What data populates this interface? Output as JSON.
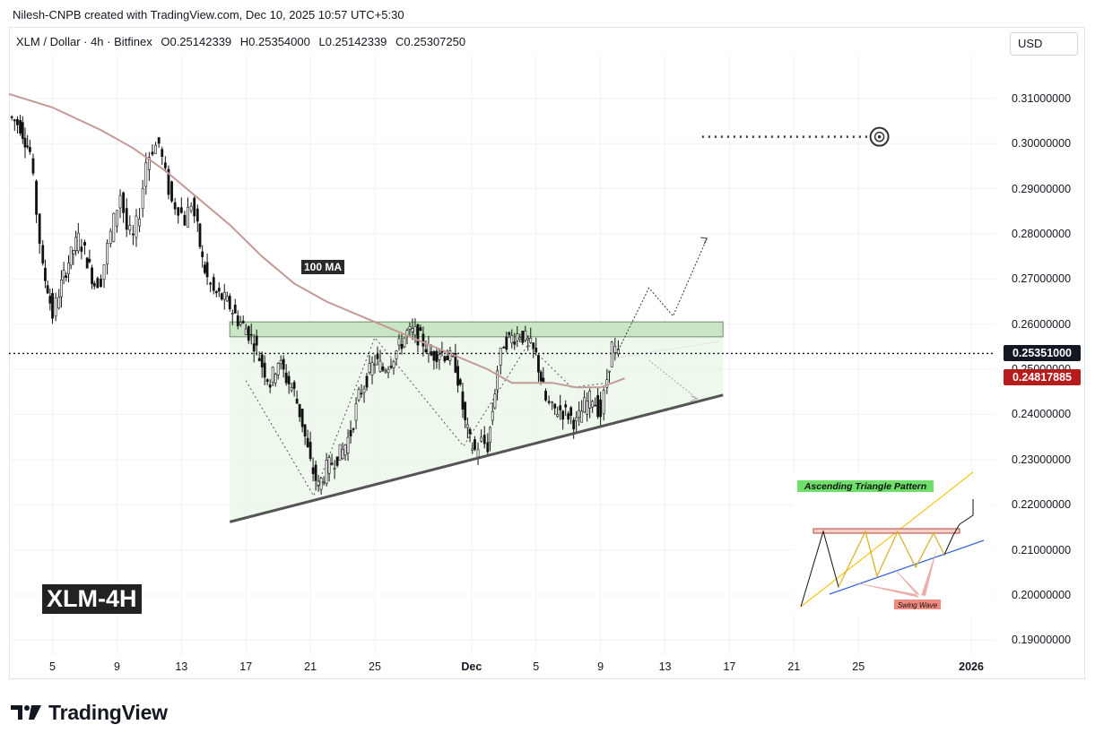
{
  "header": {
    "credit": "Nilesh-CNPB created with TradingView.com, Dec 10, 2025 10:57 UTC+5:30",
    "symbol": "XLM / Dollar · 4h · Bitfinex",
    "ohlc": {
      "open_label": "O",
      "open": "0.25142339",
      "high_label": "H",
      "high": "0.25354000",
      "low_label": "L",
      "low": "0.25142339",
      "close_label": "C",
      "close": "0.25307250"
    },
    "currency": "USD"
  },
  "chart_data": {
    "type": "candlestick",
    "symbol": "XLM / Dollar",
    "interval": "4h",
    "exchange": "Bitfinex",
    "y_axis": {
      "ticks": [
        "0.31000000",
        "0.30000000",
        "0.29000000",
        "0.28000000",
        "0.27000000",
        "0.26000000",
        "0.25000000",
        "0.24000000",
        "0.23000000",
        "0.22000000",
        "0.21000000",
        "0.20000000",
        "0.19000000"
      ],
      "ylim": [
        0.1865,
        0.3195
      ]
    },
    "x_axis": {
      "ticks": [
        {
          "label": "5",
          "day": 5
        },
        {
          "label": "9",
          "day": 9
        },
        {
          "label": "13",
          "day": 13
        },
        {
          "label": "17",
          "day": 17
        },
        {
          "label": "21",
          "day": 21
        },
        {
          "label": "25",
          "day": 25
        },
        {
          "label": "Dec",
          "day": 31,
          "bold": true
        },
        {
          "label": "5",
          "day": 35
        },
        {
          "label": "9",
          "day": 39
        },
        {
          "label": "13",
          "day": 43
        },
        {
          "label": "17",
          "day": 47
        },
        {
          "label": "21",
          "day": 51
        },
        {
          "label": "25",
          "day": 55
        },
        {
          "label": "2026",
          "day": 62,
          "bold": true
        }
      ],
      "xlim": [
        2.3,
        63.5
      ]
    },
    "price_path": [
      [
        2.3,
        0.306
      ],
      [
        3,
        0.304
      ],
      [
        3.6,
        0.298
      ],
      [
        4,
        0.285
      ],
      [
        4.4,
        0.272
      ],
      [
        4.7,
        0.268
      ],
      [
        5,
        0.262
      ],
      [
        5.4,
        0.267
      ],
      [
        6,
        0.274
      ],
      [
        6.6,
        0.279
      ],
      [
        7,
        0.276
      ],
      [
        7.6,
        0.269
      ],
      [
        8,
        0.27
      ],
      [
        8.4,
        0.277
      ],
      [
        8.8,
        0.283
      ],
      [
        9.2,
        0.289
      ],
      [
        9.6,
        0.281
      ],
      [
        10,
        0.279
      ],
      [
        10.4,
        0.285
      ],
      [
        10.8,
        0.296
      ],
      [
        11.2,
        0.299
      ],
      [
        11.6,
        0.3
      ],
      [
        12,
        0.293
      ],
      [
        12.4,
        0.287
      ],
      [
        12.8,
        0.286
      ],
      [
        13.2,
        0.283
      ],
      [
        13.6,
        0.287
      ],
      [
        14,
        0.281
      ],
      [
        14.3,
        0.274
      ],
      [
        14.6,
        0.27
      ],
      [
        15,
        0.267
      ],
      [
        15.5,
        0.266
      ],
      [
        16,
        0.264
      ],
      [
        16.5,
        0.261
      ],
      [
        17,
        0.259
      ],
      [
        17.5,
        0.256
      ],
      [
        18,
        0.251
      ],
      [
        18.5,
        0.247
      ],
      [
        19,
        0.252
      ],
      [
        19.5,
        0.248
      ],
      [
        20,
        0.245
      ],
      [
        20.5,
        0.238
      ],
      [
        21,
        0.229
      ],
      [
        21.5,
        0.224
      ],
      [
        22,
        0.228
      ],
      [
        22.5,
        0.23
      ],
      [
        23,
        0.232
      ],
      [
        23.5,
        0.236
      ],
      [
        24,
        0.244
      ],
      [
        24.5,
        0.248
      ],
      [
        25,
        0.252
      ],
      [
        25.5,
        0.25
      ],
      [
        26,
        0.252
      ],
      [
        26.5,
        0.255
      ],
      [
        27,
        0.258
      ],
      [
        27.5,
        0.258
      ],
      [
        28,
        0.256
      ],
      [
        28.5,
        0.253
      ],
      [
        29,
        0.254
      ],
      [
        29.5,
        0.253
      ],
      [
        30,
        0.251
      ],
      [
        30.3,
        0.245
      ],
      [
        30.6,
        0.238
      ],
      [
        30.9,
        0.234
      ],
      [
        31.2,
        0.232
      ],
      [
        31.6,
        0.234
      ],
      [
        32,
        0.233
      ],
      [
        32.3,
        0.241
      ],
      [
        32.6,
        0.25
      ],
      [
        33,
        0.256
      ],
      [
        33.5,
        0.257
      ],
      [
        34,
        0.258
      ],
      [
        34.5,
        0.256
      ],
      [
        35,
        0.253
      ],
      [
        35.3,
        0.248
      ],
      [
        35.6,
        0.243
      ],
      [
        36,
        0.241
      ],
      [
        36.5,
        0.241
      ],
      [
        37,
        0.24
      ],
      [
        37.5,
        0.238
      ],
      [
        38,
        0.242
      ],
      [
        38.5,
        0.244
      ],
      [
        39,
        0.24
      ],
      [
        39.4,
        0.248
      ],
      [
        39.7,
        0.255
      ],
      [
        40.1,
        0.253
      ]
    ],
    "indicators": [
      {
        "name": "100 MA",
        "color": "#c49a96",
        "points": [
          [
            2.3,
            0.311
          ],
          [
            5,
            0.308
          ],
          [
            8,
            0.303
          ],
          [
            10,
            0.299
          ],
          [
            12,
            0.294
          ],
          [
            14,
            0.288
          ],
          [
            16,
            0.282
          ],
          [
            18,
            0.275
          ],
          [
            20,
            0.269
          ],
          [
            22,
            0.265
          ],
          [
            24,
            0.262
          ],
          [
            26,
            0.259
          ],
          [
            28,
            0.256
          ],
          [
            30,
            0.253
          ],
          [
            32,
            0.25
          ],
          [
            33.5,
            0.247
          ],
          [
            36,
            0.247
          ],
          [
            37.5,
            0.246
          ],
          [
            39,
            0.246
          ],
          [
            40.5,
            0.248
          ]
        ]
      }
    ],
    "last_price": {
      "value": 0.25351,
      "label": "0.25351000",
      "color": "#131722"
    },
    "ma_price": {
      "value": 0.24817885,
      "label": "0.24817885",
      "color": "#b71c1c"
    },
    "annotations": {
      "ma_label": "100 MA",
      "resistance_zone": {
        "top": 0.2605,
        "bottom": 0.2572,
        "x_from": 16.0,
        "x_to": 46.6
      },
      "triangle_fill": {
        "x_from": 16.0,
        "x_to": 46.6
      },
      "support_trendline": [
        [
          16.0,
          0.2162
        ],
        [
          46.6,
          0.2443
        ]
      ],
      "upper_projection_line": [
        [
          39.6,
          0.2523
        ],
        [
          46.4,
          0.2562
        ]
      ],
      "projection_up": [
        [
          40.0,
          0.2535
        ],
        [
          42.0,
          0.268
        ],
        [
          43.5,
          0.2618
        ],
        [
          45.6,
          0.279
        ]
      ],
      "projection_down": [
        [
          42.0,
          0.252
        ],
        [
          45.0,
          0.2435
        ]
      ],
      "swing_dotted": [
        [
          17.0,
          0.2475
        ],
        [
          21.2,
          0.222
        ],
        [
          25.0,
          0.257
        ],
        [
          30.5,
          0.233
        ],
        [
          34.5,
          0.2555
        ],
        [
          37.2,
          0.246
        ],
        [
          39.5,
          0.247
        ]
      ],
      "target_line": {
        "value": 0.3015,
        "x_from": 45.3,
        "x_to": 56.3
      }
    },
    "inset": {
      "title": "Ascending Triangle Pattern",
      "swing_label": "Swing Wave"
    },
    "watermark": "XLM-4H"
  },
  "footer": {
    "brand": "TradingView"
  }
}
